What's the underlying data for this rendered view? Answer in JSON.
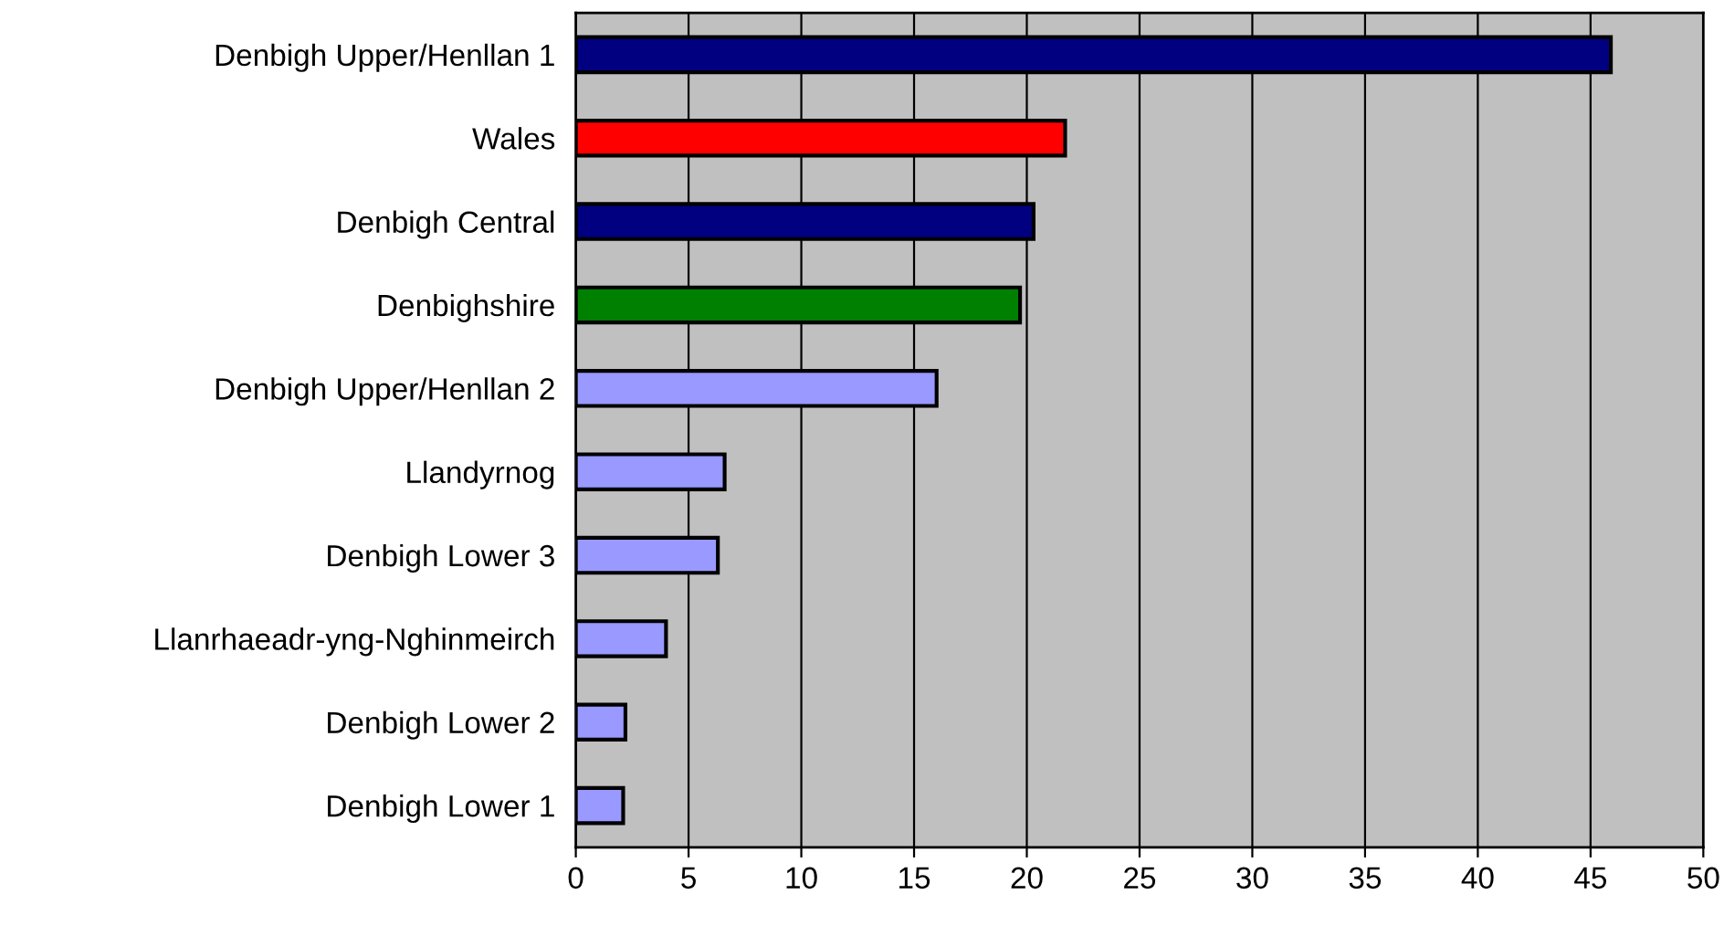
{
  "chart_data": {
    "type": "bar",
    "orientation": "horizontal",
    "categories": [
      "Denbigh Upper/Henllan 1",
      "Wales",
      "Denbigh Central",
      "Denbighshire",
      "Denbigh Upper/Henllan 2",
      "Llandyrnog",
      "Denbigh Lower 3",
      "Llanrhaeadr-yng-Nghinmeirch",
      "Denbigh Lower 2",
      "Denbigh Lower 1"
    ],
    "values": [
      45.9,
      21.7,
      20.3,
      19.7,
      16.0,
      6.6,
      6.3,
      4.0,
      2.2,
      2.1
    ],
    "colors": [
      "#000080",
      "#ff0000",
      "#000080",
      "#008000",
      "#9999ff",
      "#9999ff",
      "#9999ff",
      "#9999ff",
      "#9999ff",
      "#9999ff"
    ],
    "xlim": [
      0,
      50
    ],
    "xticks": [
      0,
      5,
      10,
      15,
      20,
      25,
      30,
      35,
      40,
      45,
      50
    ],
    "grid": "x"
  }
}
